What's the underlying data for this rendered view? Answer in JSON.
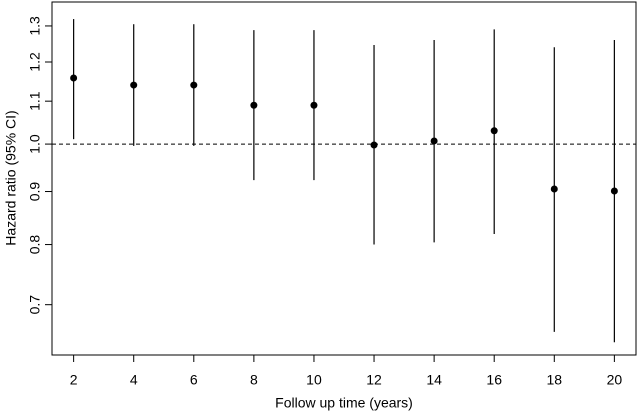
{
  "chart_data": {
    "type": "errorbar",
    "x_label": "Follow up time (years)",
    "y_label": "Hazard ratio (95% CI)",
    "x": [
      2,
      4,
      6,
      8,
      10,
      12,
      14,
      16,
      18,
      20
    ],
    "values": [
      1.158,
      1.14,
      1.14,
      1.09,
      1.09,
      0.998,
      1.007,
      1.03,
      0.905,
      0.901
    ],
    "lower": [
      1.011,
      0.996,
      0.996,
      0.923,
      0.923,
      0.8,
      0.804,
      0.819,
      0.659,
      0.644
    ],
    "upper": [
      1.32,
      1.305,
      1.305,
      1.288,
      1.288,
      1.246,
      1.26,
      1.29,
      1.24,
      1.26
    ],
    "color": "#000000",
    "reference_line": 1,
    "log_y": true,
    "xlim": [
      1.28,
      20.72
    ],
    "ylim": [
      0.626,
      1.371
    ],
    "xticks": [
      2,
      4,
      6,
      8,
      10,
      12,
      14,
      16,
      18,
      20
    ],
    "yticks": [
      0.7,
      0.8,
      0.9,
      {
        "value": 1,
        "label": "1.0"
      },
      1.1,
      1.2,
      1.3
    ]
  }
}
